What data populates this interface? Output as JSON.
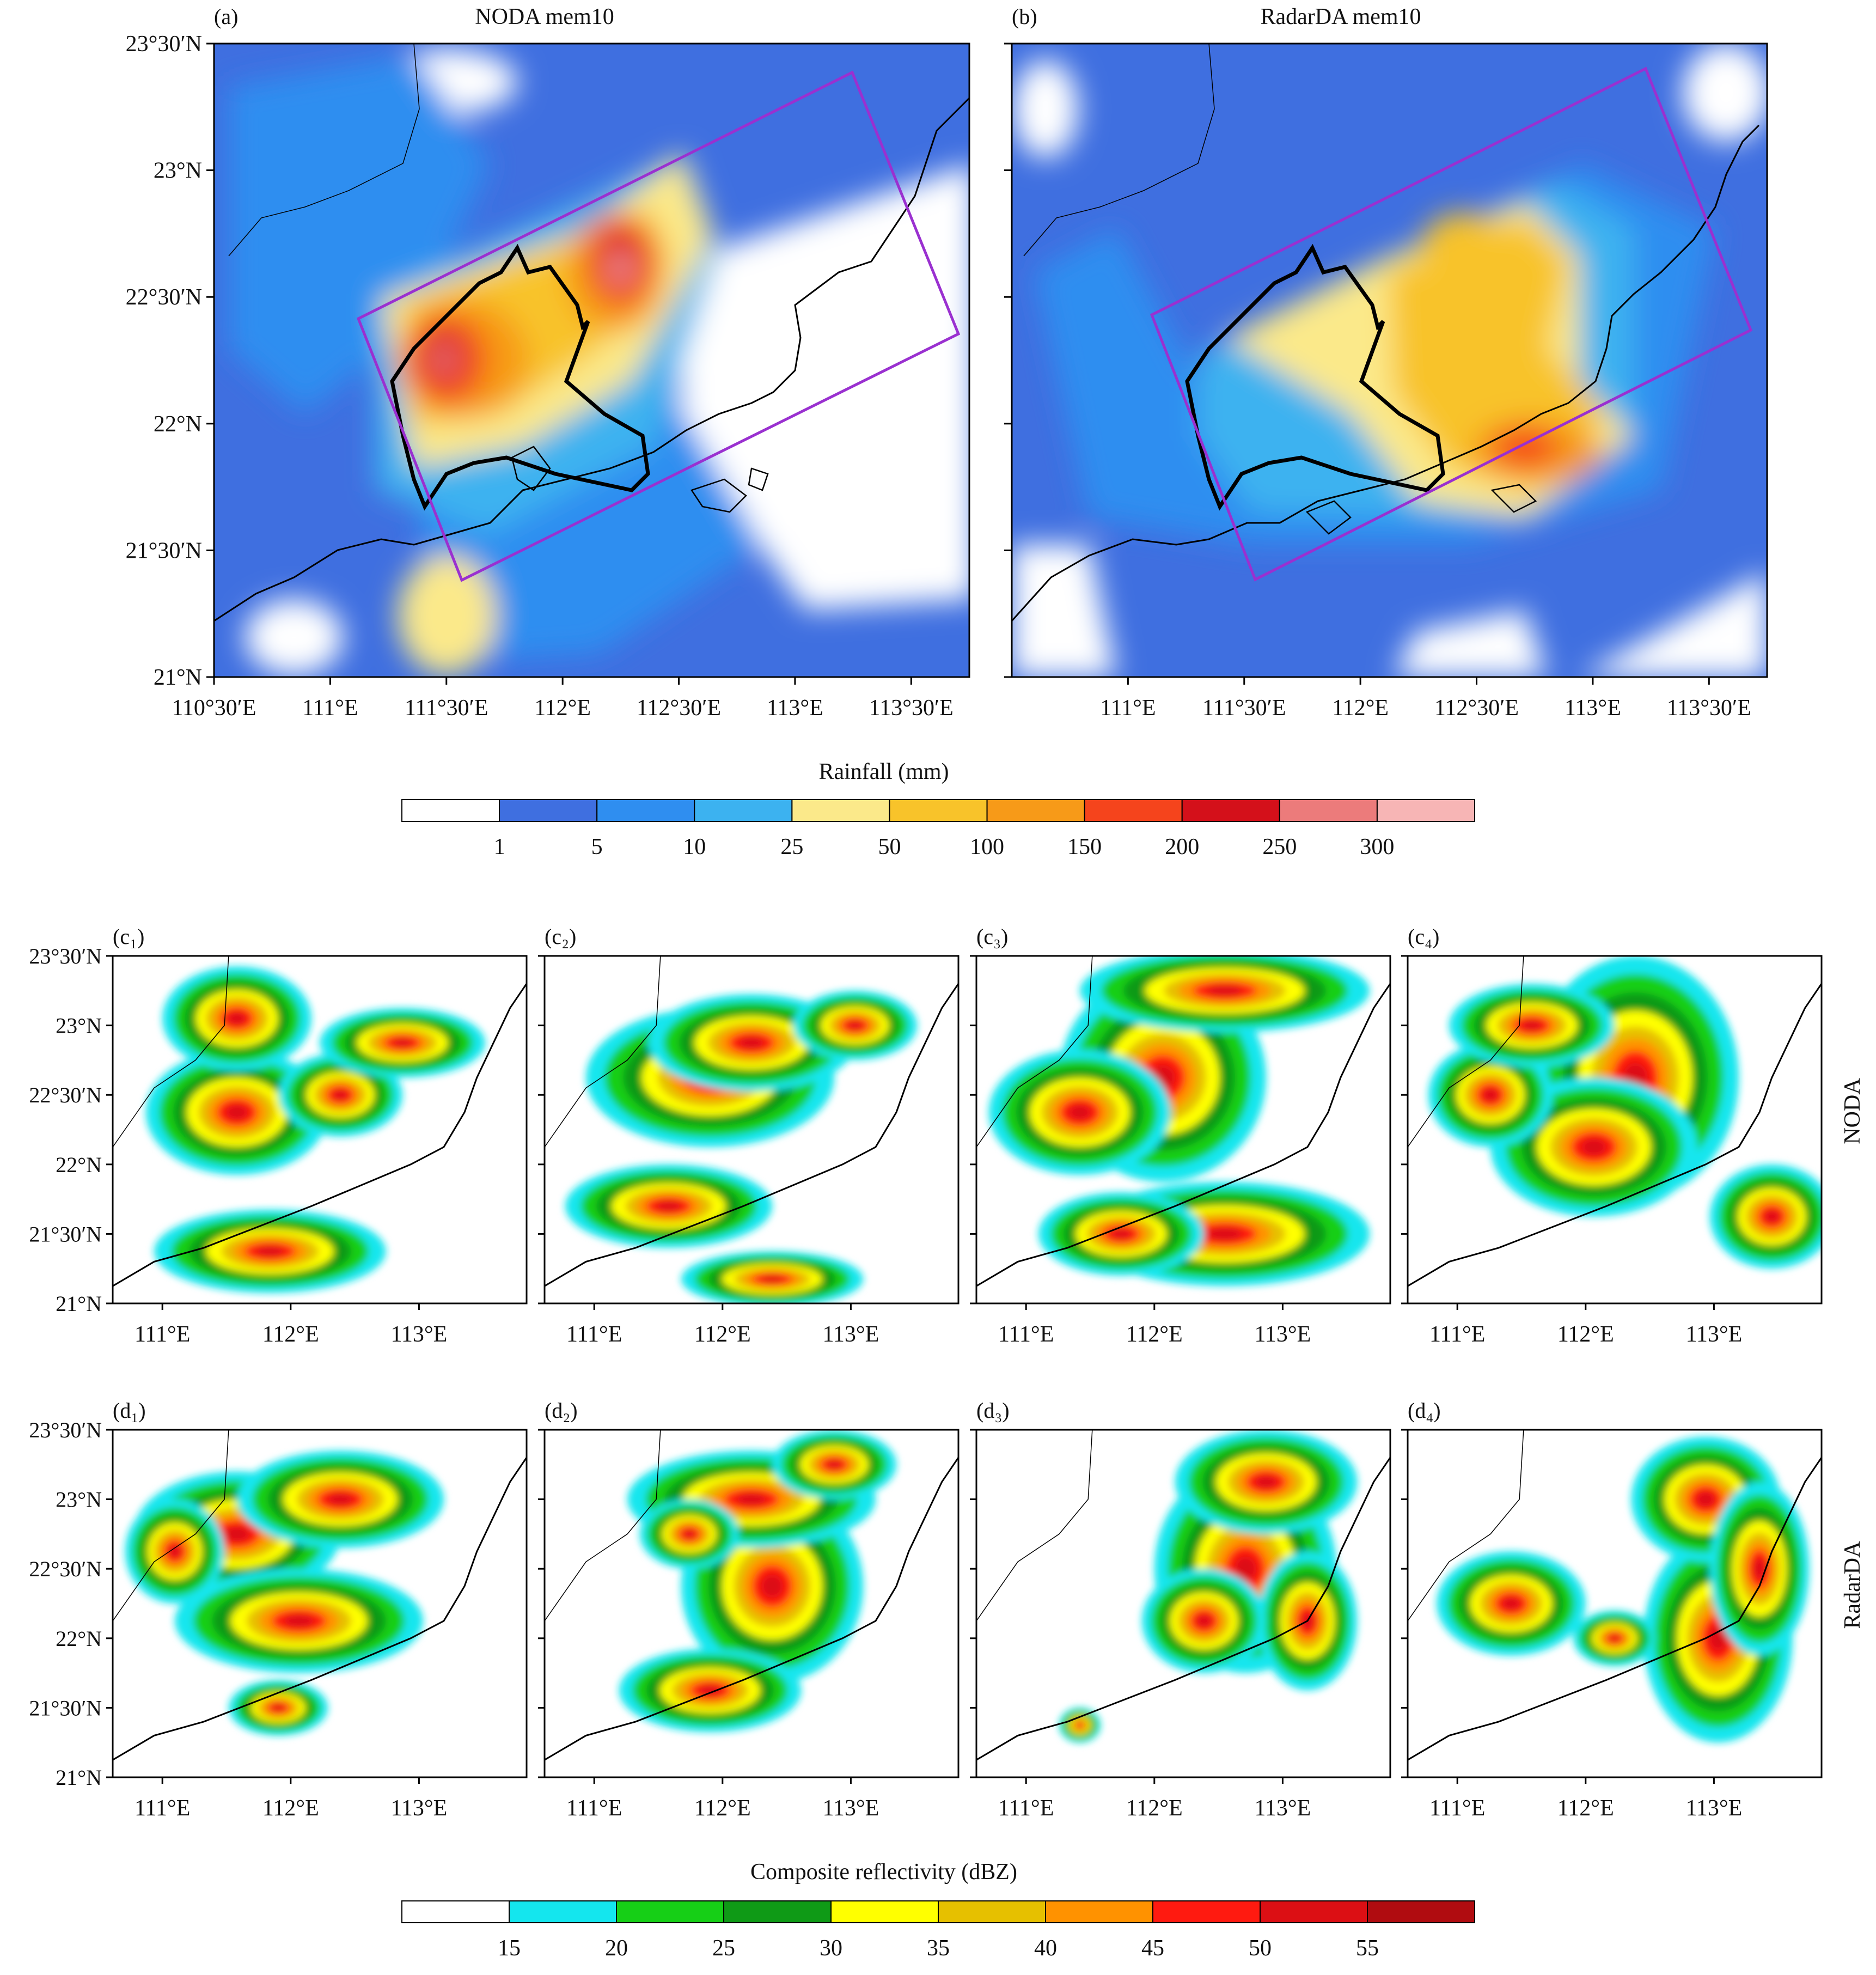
{
  "top_panels": [
    {
      "tag": "(a)",
      "title": "NODA mem10",
      "x_ticks": [
        "110°30′E",
        "111°E",
        "111°30′E",
        "112°E",
        "112°30′E",
        "113°E",
        "113°30′E"
      ]
    },
    {
      "tag": "(b)",
      "title": "RadarDA mem10",
      "x_ticks": [
        "111°E",
        "111°30′E",
        "112°E",
        "112°30′E",
        "113°E",
        "113°30′E"
      ]
    }
  ],
  "top_y_ticks": [
    "23°30′N",
    "23°N",
    "22°30′N",
    "22°N",
    "21°30′N",
    "21°N"
  ],
  "rain_colorbar": {
    "title": "Rainfall (mm)",
    "labels": [
      "1",
      "5",
      "10",
      "25",
      "50",
      "100",
      "150",
      "200",
      "250",
      "300"
    ],
    "colors": [
      "#ffffff",
      "#3f6fe0",
      "#2f8ef0",
      "#3cb2f0",
      "#fbe98a",
      "#f8c32a",
      "#f79a18",
      "#f5441c",
      "#d4101a",
      "#ec7b7b",
      "#f7b5b5"
    ]
  },
  "small_panels": {
    "c_tags": [
      "(c₁)",
      "(c₂)",
      "(c₃)",
      "(c₄)"
    ],
    "d_tags": [
      "(d₁)",
      "(d₂)",
      "(d₃)",
      "(d₄)"
    ],
    "row_labels": [
      "NODA",
      "RadarDA"
    ],
    "y_ticks": [
      "23°30′N",
      "23°N",
      "22°30′N",
      "22°N",
      "21°30′N",
      "21°N"
    ],
    "x_ticks": [
      "111°E",
      "112°E",
      "113°E"
    ]
  },
  "refl_colorbar": {
    "title": "Composite reflectivity (dBZ)",
    "labels": [
      "15",
      "20",
      "25",
      "30",
      "35",
      "40",
      "45",
      "50",
      "55"
    ],
    "colors": [
      "#ffffff",
      "#14e6ee",
      "#16cf16",
      "#0f9a16",
      "#ffff00",
      "#e6c000",
      "#ff9200",
      "#ff1a10",
      "#dc0f14",
      "#b00c10"
    ]
  },
  "map_colors": {
    "box_outline": "#9a30d0",
    "basin_outline": "#000000",
    "coast": "#000000"
  }
}
